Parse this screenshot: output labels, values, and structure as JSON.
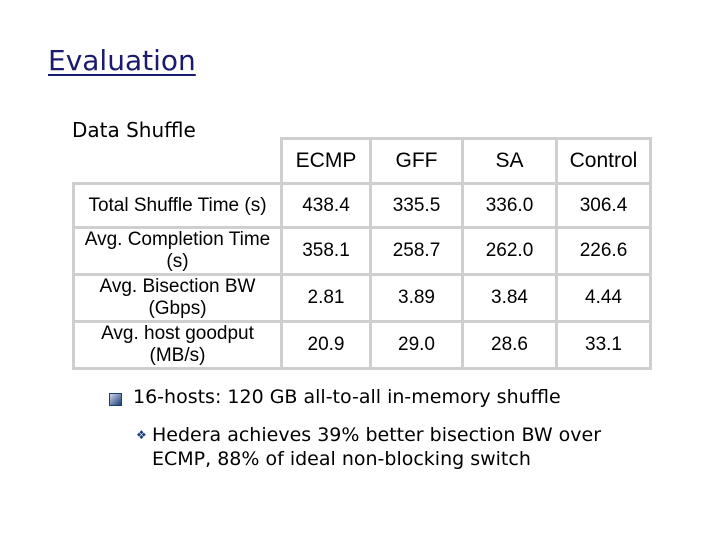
{
  "header": {
    "title": "Evaluation",
    "subtitle": "Data Shuffle"
  },
  "table": {
    "columns": [
      "ECMP",
      "GFF",
      "SA",
      "Control"
    ],
    "rows": [
      {
        "label": "Total Shuffle Time (s)",
        "cells": [
          "438.4",
          "335.5",
          "336.0",
          "306.4"
        ]
      },
      {
        "label": "Avg. Completion Time (s)",
        "cells": [
          "358.1",
          "258.7",
          "262.0",
          "226.6"
        ]
      },
      {
        "label": "Avg. Bisection BW (Gbps)",
        "cells": [
          "2.81",
          "3.89",
          "3.84",
          "4.44"
        ]
      },
      {
        "label": "Avg. host goodput (MB/s)",
        "cells": [
          "20.9",
          "29.0",
          "28.6",
          "33.1"
        ]
      }
    ]
  },
  "bullets": [
    {
      "text": "16-hosts: 120 GB all-to-all in-memory shuffle",
      "sub": [
        "Hedera achieves 39% better bisection BW over ECMP,  88% of ideal non-blocking switch"
      ]
    }
  ]
}
